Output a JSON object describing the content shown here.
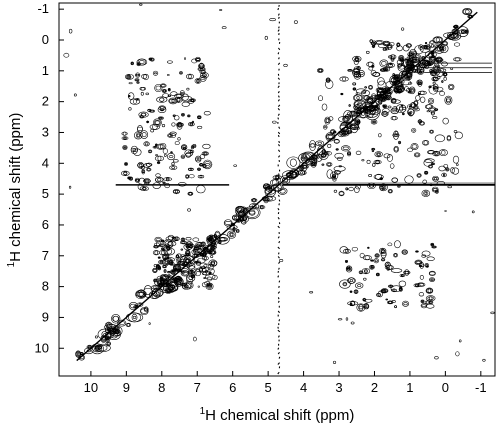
{
  "chart_data": {
    "type": "contour",
    "xlabel_sup": "1",
    "xlabel": "H chemical shift (ppm)",
    "ylabel_sup": "1",
    "ylabel": "H chemical shift (ppm)",
    "xlim": [
      10.9,
      -1.4
    ],
    "ylim": [
      -1.2,
      10.9
    ],
    "x_reversed": true,
    "y_reversed": true,
    "x_ticks": [
      10,
      9,
      8,
      7,
      6,
      5,
      4,
      3,
      2,
      1,
      0,
      -1
    ],
    "y_ticks": [
      -1,
      0,
      1,
      2,
      3,
      4,
      5,
      6,
      7,
      8,
      9,
      10
    ],
    "grid": false,
    "line_color": "#000000",
    "diagonal": {
      "from": [
        10.4,
        10.4
      ],
      "to": [
        -0.9,
        -0.9
      ]
    },
    "water_line": {
      "ppm": 4.7
    },
    "cross_peak_regions": [
      {
        "x_range": [
          9.1,
          6.7
        ],
        "y_range": [
          0.6,
          5.0
        ],
        "density": "high"
      },
      {
        "x_range": [
          3.6,
          -0.4
        ],
        "y_range": [
          0.6,
          5.0
        ],
        "density": "high"
      },
      {
        "x_range": [
          2.9,
          0.3
        ],
        "y_range": [
          6.6,
          8.7
        ],
        "density": "medium"
      },
      {
        "x_range": [
          8.2,
          6.5
        ],
        "y_range": [
          6.4,
          8.0
        ],
        "density": "high"
      },
      {
        "x_range": [
          2.6,
          0.0
        ],
        "y_range": [
          0.0,
          2.4
        ],
        "density": "high"
      }
    ]
  }
}
